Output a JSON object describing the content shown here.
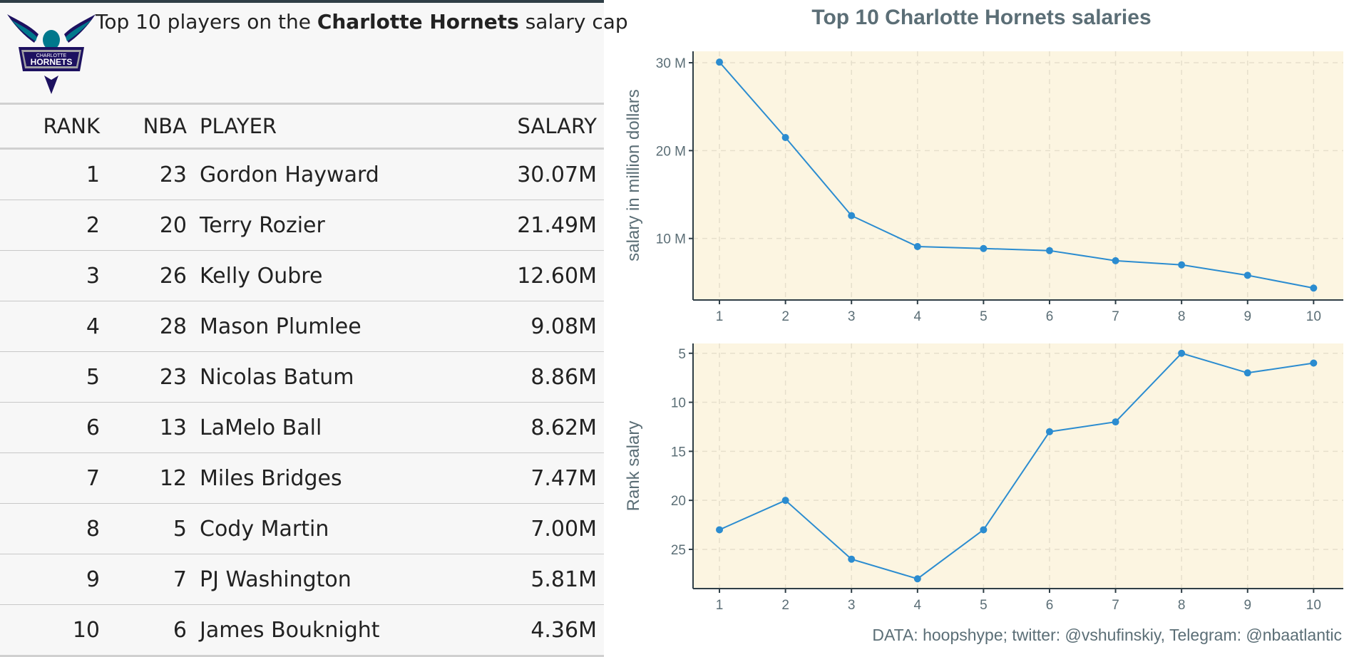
{
  "header": {
    "title_prefix": "Top 10 players on the ",
    "title_team": "Charlotte Hornets",
    "title_suffix": " salary cap",
    "logo_text_top": "CHARLOTTE",
    "logo_text_main": "HORNETS"
  },
  "table": {
    "columns": {
      "rank": "RANK",
      "nba": "NBA",
      "player": "PLAYER",
      "salary": "SALARY"
    },
    "rows": [
      {
        "rank": "1",
        "nba": "23",
        "player": "Gordon Hayward",
        "salary": "30.07M"
      },
      {
        "rank": "2",
        "nba": "20",
        "player": "Terry Rozier",
        "salary": "21.49M"
      },
      {
        "rank": "3",
        "nba": "26",
        "player": "Kelly Oubre",
        "salary": "12.60M"
      },
      {
        "rank": "4",
        "nba": "28",
        "player": "Mason Plumlee",
        "salary": "9.08M"
      },
      {
        "rank": "5",
        "nba": "23",
        "player": "Nicolas Batum",
        "salary": "8.86M"
      },
      {
        "rank": "6",
        "nba": "13",
        "player": "LaMelo Ball",
        "salary": "8.62M"
      },
      {
        "rank": "7",
        "nba": "12",
        "player": "Miles Bridges",
        "salary": "7.47M"
      },
      {
        "rank": "8",
        "nba": "5",
        "player": "Cody Martin",
        "salary": "7.00M"
      },
      {
        "rank": "9",
        "nba": "7",
        "player": "PJ Washington",
        "salary": "5.81M"
      },
      {
        "rank": "10",
        "nba": "6",
        "player": "James Bouknight",
        "salary": "4.36M"
      }
    ]
  },
  "chart_title": "Top 10 Charlotte Hornets salaries",
  "caption": "DATA: hoopshype; twitter: @vshufinskiy, Telegram: @nbaatlantic",
  "colors": {
    "line": "#2b8cd0",
    "panel_bg": "#fcf5e1",
    "grid": "#e6dfcc",
    "axis_text": "#5b6e76",
    "axis_line": "#2f3e46"
  },
  "chart_data": [
    {
      "type": "line",
      "x": [
        1,
        2,
        3,
        4,
        5,
        6,
        7,
        8,
        9,
        10
      ],
      "values": [
        30.07,
        21.49,
        12.6,
        9.08,
        8.86,
        8.62,
        7.47,
        7.0,
        5.81,
        4.36
      ],
      "ylabel": "salary in million dollars",
      "xlim": [
        0.6,
        10.45
      ],
      "ylim": [
        3.0,
        31.3
      ],
      "yticks": [
        10,
        20,
        30
      ],
      "ytick_labels": [
        "10 M",
        "20 M",
        "30 M"
      ],
      "xtick_labels": [
        "1",
        "2",
        "3",
        "4",
        "5",
        "6",
        "7",
        "8",
        "9",
        "10"
      ],
      "grid": true
    },
    {
      "type": "line",
      "x": [
        1,
        2,
        3,
        4,
        5,
        6,
        7,
        8,
        9,
        10
      ],
      "values": [
        23,
        20,
        26,
        28,
        23,
        13,
        12,
        5,
        7,
        6
      ],
      "ylabel": "Rank salary",
      "y_reversed": true,
      "xlim": [
        0.6,
        10.45
      ],
      "ylim": [
        4.0,
        29.0
      ],
      "yticks": [
        5,
        10,
        15,
        20,
        25
      ],
      "ytick_labels": [
        "5",
        "10",
        "15",
        "20",
        "25"
      ],
      "xtick_labels": [
        "1",
        "2",
        "3",
        "4",
        "5",
        "6",
        "7",
        "8",
        "9",
        "10"
      ],
      "grid": true
    }
  ]
}
